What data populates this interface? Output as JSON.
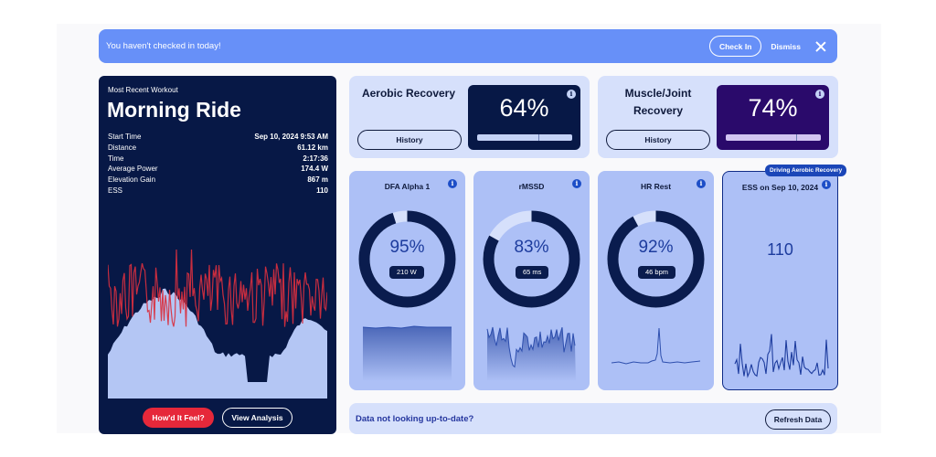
{
  "banner": {
    "message": "You haven't checked in today!",
    "check_in_label": "Check In",
    "dismiss_label": "Dismiss"
  },
  "workout": {
    "subtitle": "Most Recent Workout",
    "title": "Morning Ride",
    "stats": [
      {
        "label": "Start Time",
        "value": "Sep 10, 2024 9:53 AM"
      },
      {
        "label": "Distance",
        "value": "61.12 km"
      },
      {
        "label": "Time",
        "value": "2:17:36"
      },
      {
        "label": "Average Power",
        "value": "174.4 W"
      },
      {
        "label": "Elevation Gain",
        "value": "867 m"
      },
      {
        "label": "ESS",
        "value": "110"
      }
    ],
    "feel_label": "How'd It Feel?",
    "analysis_label": "View Analysis",
    "colors": {
      "power": "#d9303f",
      "elevation": "#b4c6f4",
      "background": "#071846"
    }
  },
  "recovery": {
    "aerobic": {
      "title": "Aerobic Recovery",
      "percent_text": "64%",
      "percent": 64,
      "history_label": "History",
      "color": "#071846"
    },
    "muscle": {
      "title": "Muscle/Joint Recovery",
      "percent_text": "74%",
      "percent": 74,
      "history_label": "History",
      "color": "#2a0a6b"
    }
  },
  "metrics": {
    "dfa": {
      "title": "DFA Alpha 1",
      "percent_text": "95%",
      "percent": 95,
      "pill": "210 W"
    },
    "rmssd": {
      "title": "rMSSD",
      "percent_text": "83%",
      "percent": 83,
      "pill": "65 ms"
    },
    "hr": {
      "title": "HR Rest",
      "percent_text": "92%",
      "percent": 92,
      "pill": "46 bpm"
    },
    "ess": {
      "title": "ESS on Sep 10, 2024",
      "value": "110",
      "badge": "Driving Aerobic Recovery"
    }
  },
  "refresh": {
    "message": "Data not looking up-to-date?",
    "button_label": "Refresh Data"
  },
  "icons": {
    "info": "info-icon",
    "close": "close-icon"
  }
}
